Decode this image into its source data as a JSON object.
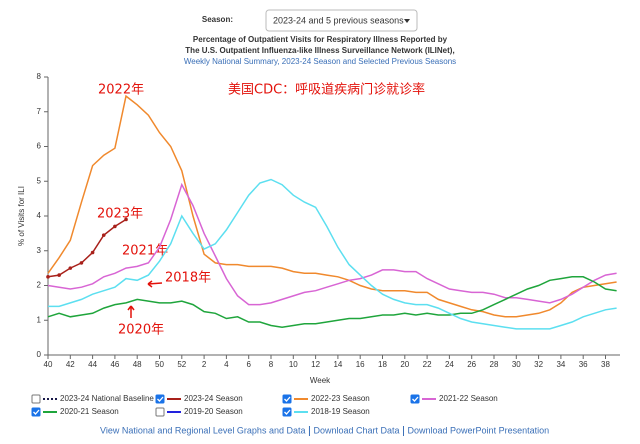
{
  "controls": {
    "season_label": "Season:",
    "season_value": "2023-24 and 5 previous seasons"
  },
  "chart_data": {
    "type": "line",
    "title": [
      "Percentage of Outpatient Visits for Respiratory Illness Reported by",
      "The U.S. Outpatient Influenza-like Illness Surveillance Network (ILINet),"
    ],
    "subtitle": "Weekly National Summary, 2023-24 Season and Selected Previous Seasons",
    "x_label": "Week",
    "y_label": "% of Visits for ILI",
    "categories": [
      "40",
      null,
      "42",
      null,
      "44",
      null,
      "46",
      null,
      "48",
      null,
      "50",
      null,
      "52",
      null,
      "2",
      null,
      "4",
      null,
      "6",
      null,
      "8",
      null,
      "10",
      null,
      "12",
      null,
      "14",
      null,
      "16",
      null,
      "18",
      null,
      "20",
      null,
      "22",
      null,
      "24",
      null,
      "26",
      null,
      "28",
      null,
      "30",
      null,
      "32",
      null,
      "34",
      null,
      "36",
      null,
      "38",
      null
    ],
    "ylim": [
      0,
      8
    ],
    "yticks": [
      0,
      1,
      2,
      3,
      4,
      5,
      6,
      7,
      8
    ],
    "grid": false,
    "series": [
      {
        "name": "2023-24 National Baseline",
        "color": "#1a1a4a",
        "checked": false
      },
      {
        "name": "2023-24 Season",
        "color": "#a8201a",
        "checked": true,
        "values": [
          2.25,
          2.3,
          2.5,
          2.65,
          2.95,
          3.45,
          3.7,
          3.9,
          null,
          null,
          null,
          null,
          null,
          null,
          null,
          null,
          null,
          null,
          null,
          null,
          null,
          null,
          null,
          null,
          null,
          null,
          null,
          null,
          null,
          null,
          null,
          null,
          null,
          null,
          null,
          null,
          null,
          null,
          null,
          null,
          null,
          null,
          null,
          null,
          null,
          null,
          null,
          null,
          null,
          null,
          null,
          null
        ]
      },
      {
        "name": "2022-23 Season",
        "color": "#f0892d",
        "checked": true,
        "values": [
          2.35,
          2.8,
          3.3,
          4.4,
          5.45,
          5.75,
          5.95,
          7.45,
          7.2,
          6.9,
          6.4,
          6.0,
          5.3,
          4.0,
          2.9,
          2.65,
          2.6,
          2.6,
          2.55,
          2.55,
          2.55,
          2.5,
          2.4,
          2.35,
          2.35,
          2.3,
          2.25,
          2.15,
          2.0,
          1.9,
          1.85,
          1.85,
          1.85,
          1.8,
          1.8,
          1.6,
          1.5,
          1.4,
          1.3,
          1.25,
          1.15,
          1.1,
          1.1,
          1.15,
          1.2,
          1.3,
          1.5,
          1.8,
          1.95,
          2.0,
          2.05,
          2.1
        ]
      },
      {
        "name": "2021-22 Season",
        "color": "#d865d4",
        "checked": true,
        "values": [
          2.0,
          1.95,
          1.9,
          1.95,
          2.05,
          2.25,
          2.35,
          2.5,
          2.55,
          2.65,
          3.1,
          3.9,
          4.9,
          4.3,
          3.5,
          2.85,
          2.2,
          1.7,
          1.45,
          1.45,
          1.5,
          1.6,
          1.7,
          1.8,
          1.85,
          1.95,
          2.05,
          2.15,
          2.2,
          2.3,
          2.45,
          2.45,
          2.4,
          2.4,
          2.2,
          2.05,
          1.9,
          1.85,
          1.8,
          1.8,
          1.75,
          1.65,
          1.65,
          1.6,
          1.55,
          1.5,
          1.6,
          1.75,
          1.95,
          2.15,
          2.3,
          2.35
        ]
      },
      {
        "name": "2020-21 Season",
        "color": "#1fa53c",
        "checked": true,
        "values": [
          1.1,
          1.2,
          1.1,
          1.15,
          1.2,
          1.35,
          1.45,
          1.5,
          1.6,
          1.55,
          1.5,
          1.5,
          1.55,
          1.45,
          1.25,
          1.2,
          1.05,
          1.1,
          0.95,
          0.95,
          0.85,
          0.8,
          0.85,
          0.9,
          0.9,
          0.95,
          1.0,
          1.05,
          1.05,
          1.1,
          1.15,
          1.15,
          1.2,
          1.15,
          1.2,
          1.15,
          1.15,
          1.2,
          1.2,
          1.3,
          1.45,
          1.6,
          1.75,
          1.9,
          2.0,
          2.15,
          2.2,
          2.25,
          2.25,
          2.1,
          1.9,
          1.85
        ]
      },
      {
        "name": "2019-20 Season",
        "color": "#2222dd",
        "checked": false
      },
      {
        "name": "2018-19 Season",
        "color": "#5cdff0",
        "checked": true,
        "values": [
          1.4,
          1.4,
          1.5,
          1.6,
          1.75,
          1.85,
          1.95,
          2.2,
          2.15,
          2.3,
          2.7,
          3.2,
          4.0,
          3.5,
          3.05,
          3.2,
          3.6,
          4.1,
          4.6,
          4.95,
          5.05,
          4.9,
          4.6,
          4.4,
          4.25,
          3.7,
          3.1,
          2.6,
          2.3,
          2.0,
          1.75,
          1.6,
          1.5,
          1.45,
          1.45,
          1.35,
          1.2,
          1.05,
          0.95,
          0.9,
          0.85,
          0.8,
          0.75,
          0.75,
          0.75,
          0.75,
          0.85,
          0.95,
          1.1,
          1.2,
          1.3,
          1.35
        ]
      }
    ],
    "annotations": [
      "2022年",
      "美国CDC：呼吸道疾病门诊就诊率",
      "2023年",
      "2021年",
      "2018年",
      "2020年"
    ]
  },
  "footer": [
    "View National and Regional Level Graphs and Data",
    "Download Chart Data",
    "Download PowerPoint Presentation"
  ]
}
